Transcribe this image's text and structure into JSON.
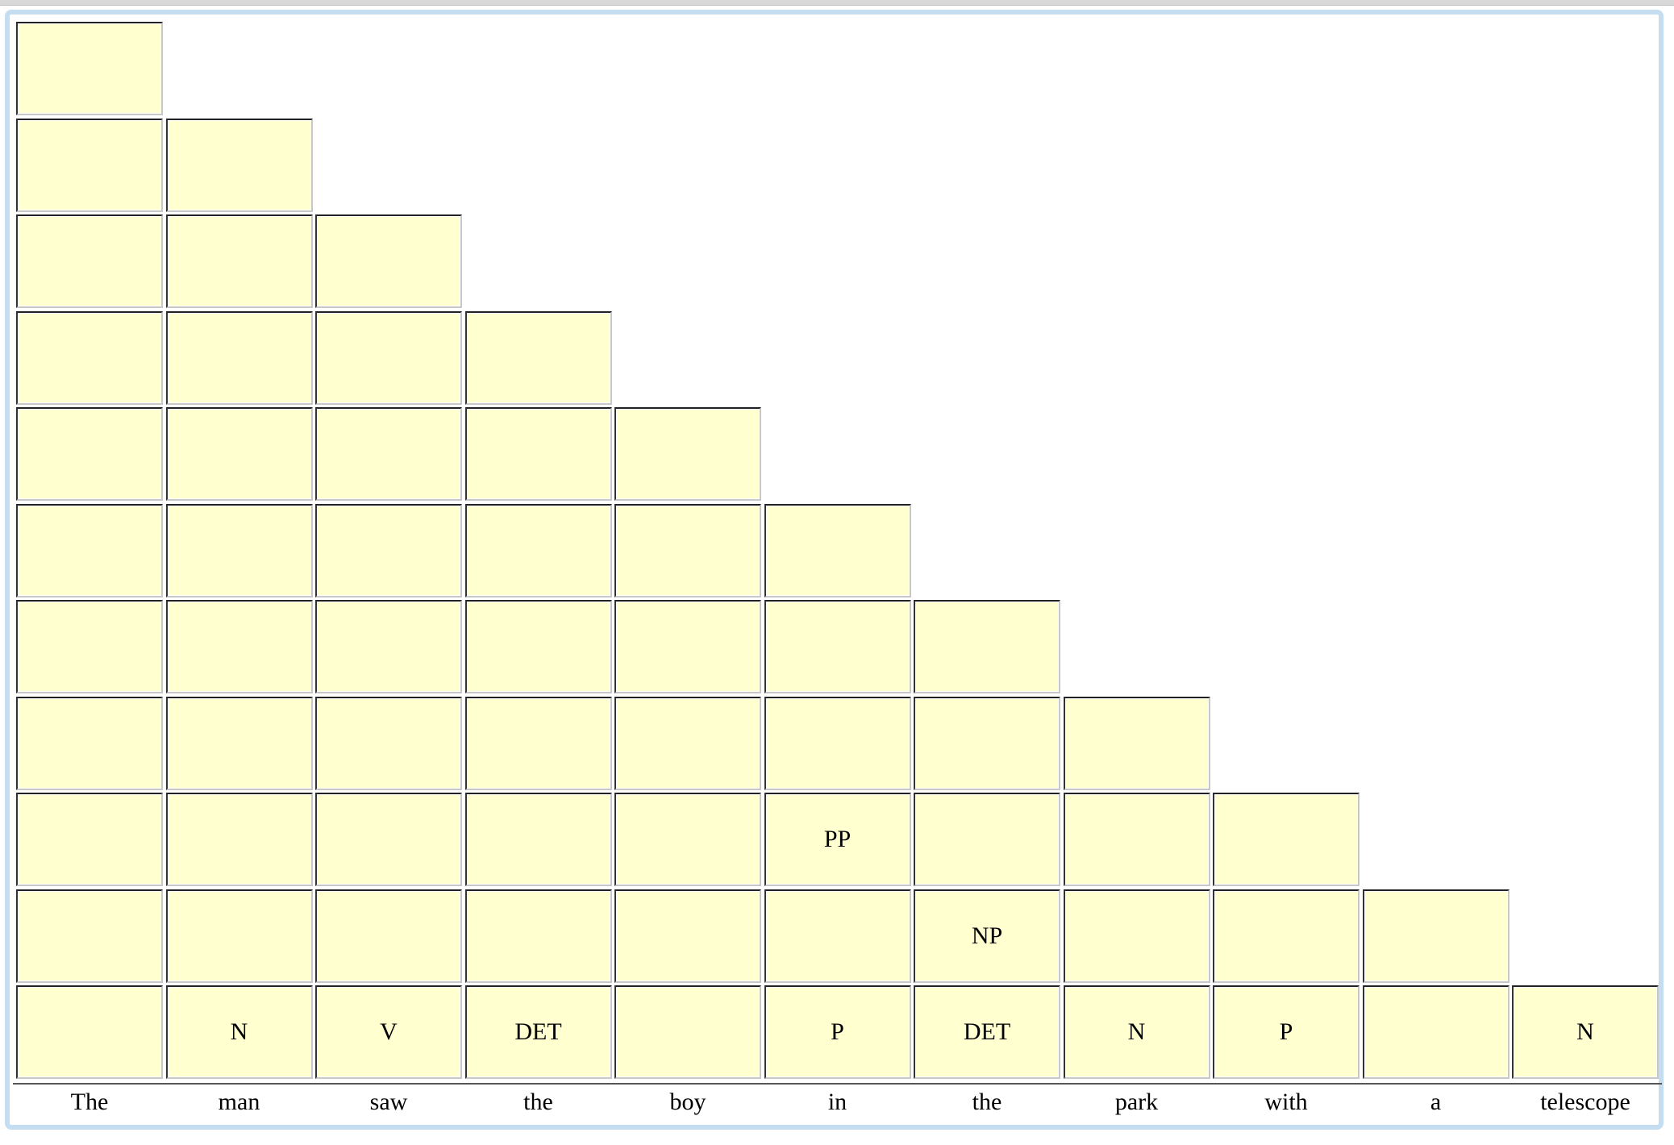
{
  "words": [
    "The",
    "man",
    "saw",
    "the",
    "boy",
    "in",
    "the",
    "park",
    "with",
    "a",
    "telescope"
  ],
  "row_labels": [
    [],
    [],
    [],
    [],
    [],
    [],
    [],
    [],
    [
      "",
      "",
      "",
      "",
      "",
      "PP",
      "",
      "",
      ""
    ],
    [
      "",
      "",
      "",
      "",
      "",
      "",
      "NP",
      "",
      "",
      ""
    ],
    [
      "",
      "N",
      "V",
      "DET",
      "",
      "P",
      "DET",
      "N",
      "P",
      "",
      "N"
    ]
  ],
  "colors": {
    "cell_fill": "#ffffd0",
    "frame": "#c4ddf1"
  }
}
